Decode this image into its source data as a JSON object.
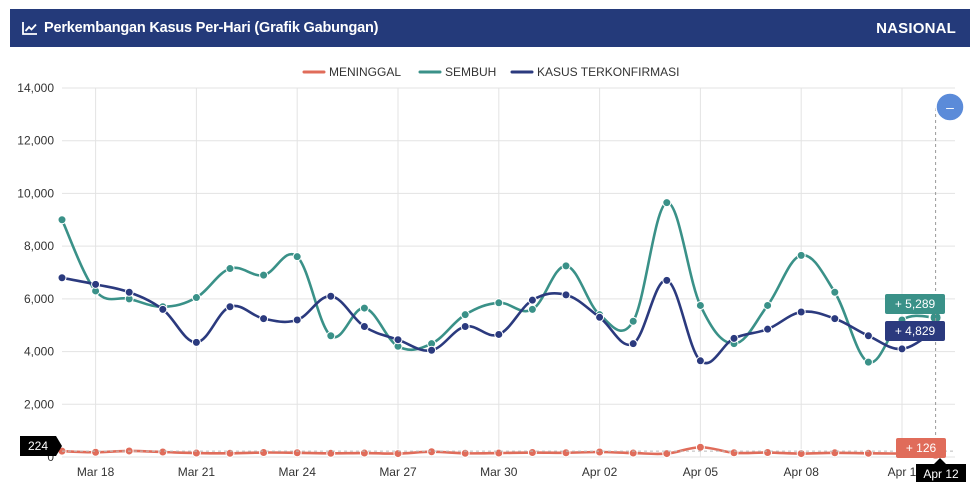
{
  "header": {
    "title": "Perkembangan Kasus Per-Hari (Grafik Gabungan)",
    "badge": "NASIONAL",
    "icon": "line-chart-icon"
  },
  "colors": {
    "header_bg": "#243a7a",
    "meninggal": "#e06c5a",
    "sembuh": "#3a9188",
    "terkonfirmasi": "#2b3a7e",
    "zoom_button": "#5b8bd9"
  },
  "chart_data": {
    "type": "line",
    "categories": [
      "Mar 17",
      "Mar 18",
      "Mar 19",
      "Mar 20",
      "Mar 21",
      "Mar 22",
      "Mar 23",
      "Mar 24",
      "Mar 25",
      "Mar 26",
      "Mar 27",
      "Mar 28",
      "Mar 29",
      "Mar 30",
      "Mar 31",
      "Apr 01",
      "Apr 02",
      "Apr 03",
      "Apr 04",
      "Apr 05",
      "Apr 06",
      "Apr 07",
      "Apr 08",
      "Apr 09",
      "Apr 10",
      "Apr 11",
      "Apr 12"
    ],
    "x_tick_labels": [
      "Mar 18",
      "Mar 21",
      "Mar 24",
      "Mar 27",
      "Mar 30",
      "Apr 02",
      "Apr 05",
      "Apr 08",
      "Apr 1",
      "Apr 12"
    ],
    "y_tick_labels": [
      "0",
      "2,000",
      "4,000",
      "6,000",
      "8,000",
      "10,000",
      "12,000",
      "14,000"
    ],
    "ylim": [
      0,
      14000
    ],
    "grid": true,
    "legend_position": "top",
    "series": [
      {
        "name": "MENINGGAL",
        "color_key": "meninggal",
        "values": [
          224,
          180,
          230,
          190,
          150,
          140,
          170,
          160,
          140,
          150,
          130,
          200,
          140,
          150,
          170,
          160,
          190,
          150,
          130,
          370,
          160,
          170,
          130,
          160,
          140,
          130,
          126
        ]
      },
      {
        "name": "SEMBUH",
        "color_key": "sembuh",
        "values": [
          9000,
          6300,
          6000,
          5700,
          6050,
          7150,
          6900,
          7600,
          4600,
          5650,
          4200,
          4300,
          5400,
          5850,
          5600,
          7250,
          5400,
          5150,
          9650,
          5750,
          4300,
          5750,
          7650,
          6250,
          3600,
          5200,
          5289
        ]
      },
      {
        "name": "KASUS TERKONFIRMASI",
        "color_key": "terkonfirmasi",
        "values": [
          6800,
          6550,
          6250,
          5600,
          4350,
          5700,
          5250,
          5200,
          6100,
          4950,
          4450,
          4050,
          4950,
          4650,
          5950,
          6150,
          5300,
          4300,
          6700,
          3650,
          4500,
          4850,
          5500,
          5250,
          4600,
          4100,
          4829
        ]
      }
    ],
    "tooltips": {
      "left_value": "224",
      "sembuh_value": "+ 5,289",
      "terkonfirmasi_value": "+ 4,829",
      "meninggal_value": "+ 126",
      "hover_date": "Apr 12"
    },
    "zoom_symbol": "–"
  }
}
